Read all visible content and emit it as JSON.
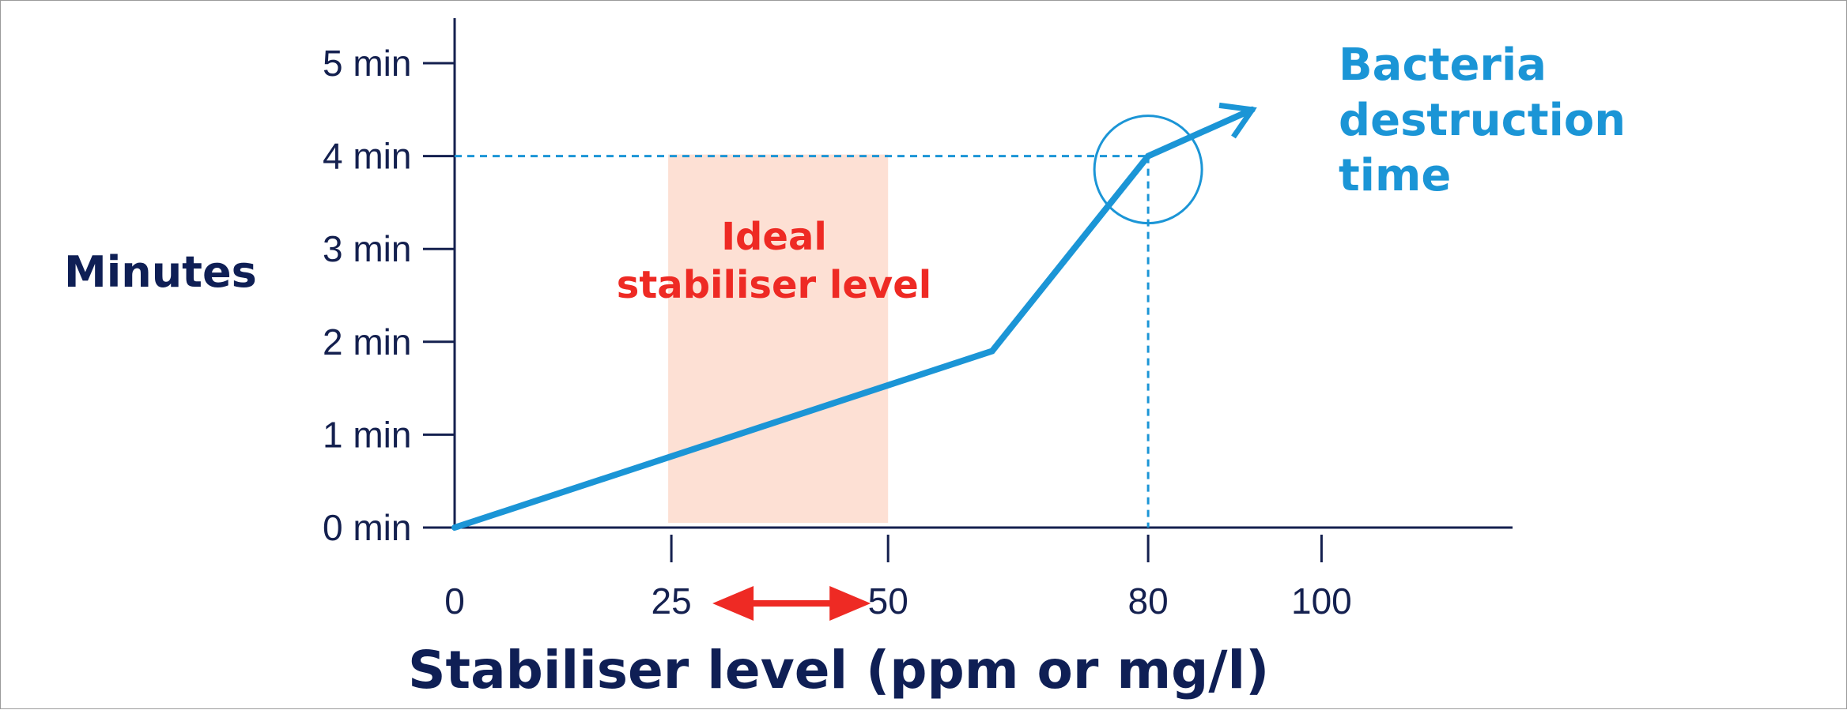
{
  "chart_data": {
    "type": "line",
    "title": "",
    "xlabel": "Stabiliser level (ppm or mg/l)",
    "ylabel": "Minutes",
    "xlim": [
      0,
      105
    ],
    "ylim": [
      0,
      5
    ],
    "x_ticks": [
      {
        "value": 0,
        "label": "0"
      },
      {
        "value": 25,
        "label": "25"
      },
      {
        "value": 50,
        "label": "50"
      },
      {
        "value": 80,
        "label": "80"
      },
      {
        "value": 100,
        "label": "100"
      }
    ],
    "y_ticks": [
      {
        "value": 0,
        "label": "0 min"
      },
      {
        "value": 1,
        "label": "1 min"
      },
      {
        "value": 2,
        "label": "2 min"
      },
      {
        "value": 3,
        "label": "3 min"
      },
      {
        "value": 4,
        "label": "4 min"
      },
      {
        "value": 5,
        "label": "5 min"
      }
    ],
    "series": [
      {
        "name": "Bacteria destruction time",
        "x": [
          0,
          62,
          80,
          92
        ],
        "y": [
          0,
          1.9,
          4.0,
          4.5
        ],
        "color": "#1b95d6"
      }
    ],
    "shaded_region": {
      "x_from": 25,
      "x_to": 50,
      "y_from": 0,
      "y_to": 4,
      "color": "#fde0d4",
      "label_lines": [
        "Ideal",
        "stabiliser level"
      ]
    },
    "reference_point": {
      "x": 80,
      "y": 4
    },
    "range_arrow": {
      "from": 25,
      "to": 50,
      "color": "#ee2a24"
    },
    "annotation_lines": [
      "Bacteria",
      "destruction",
      "time"
    ],
    "grid": false,
    "colors": {
      "axis": "#14204f",
      "line": "#1b95d6",
      "accent_red": "#ee2a24",
      "shade": "#fde0d4"
    }
  }
}
